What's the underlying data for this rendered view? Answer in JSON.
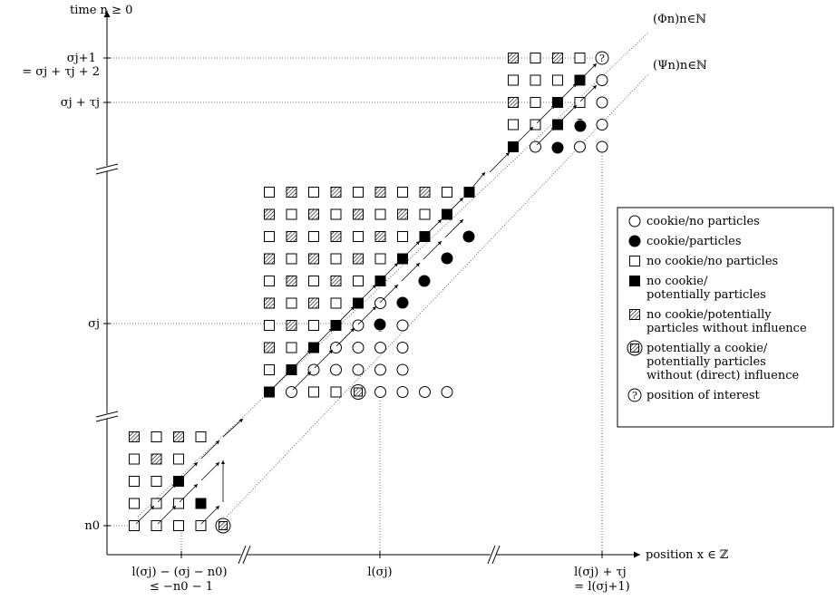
{
  "y_axis_label": "time n ≥ 0",
  "x_axis_label": "position x ∈ ℤ",
  "phi_label": "(Φn)n∈ℕ",
  "psi_label": "(Ψn)n∈ℕ",
  "y_ticks": [
    {
      "lines": [
        "σj+1",
        "= σj + τj + 2"
      ]
    },
    {
      "lines": [
        "σj + τj"
      ]
    },
    {
      "lines": [
        "σj"
      ]
    },
    {
      "lines": [
        "n0"
      ]
    }
  ],
  "x_ticks": [
    {
      "lines": [
        "l(σj) − (σj − n0)",
        "≤ −n0 − 1"
      ]
    },
    {
      "lines": [
        "l(σj)"
      ]
    },
    {
      "lines": [
        "l(σj) + τj",
        "= l(σj+1)"
      ]
    }
  ],
  "legend": [
    {
      "symbol": "open-circle",
      "text": [
        "cookie/no particles"
      ]
    },
    {
      "symbol": "filled-circle",
      "text": [
        "cookie/particles"
      ]
    },
    {
      "symbol": "open-square",
      "text": [
        "no cookie/no particles"
      ]
    },
    {
      "symbol": "filled-square",
      "text": [
        "no cookie/",
        "potentially particles"
      ]
    },
    {
      "symbol": "hatched-square",
      "text": [
        "no cookie/potentially",
        "particles without influence"
      ]
    },
    {
      "symbol": "hatched-circle",
      "text": [
        "potentially a cookie/",
        "potentially particles",
        "without (direct) influence"
      ]
    },
    {
      "symbol": "question-circle",
      "text": [
        "position of interest"
      ]
    }
  ],
  "glyph_question": "?",
  "grids": [
    {
      "rows": [
        "HSHS",
        "SHS",
        "SSF",
        "SSSF",
        "SSSSR"
      ]
    },
    {
      "rows": [
        "SHSHSHSHSF",
        "HSHSHSHSF",
        "SHSHSHSF",
        "HSHSHSF",
        "SHSHSF",
        "HSHSFOO",
        "SHSFOOO",
        "HSFOOOO",
        "SFOOOOO",
        "FOSSROOOO"
      ]
    },
    {
      "rows": [
        "HSHS?",
        "SSSFO",
        "HSFSO",
        "SSFOO",
        "FOFOO"
      ]
    }
  ],
  "colors": {
    "ink": "#000000",
    "dotted": "#444444",
    "background": "#ffffff"
  }
}
